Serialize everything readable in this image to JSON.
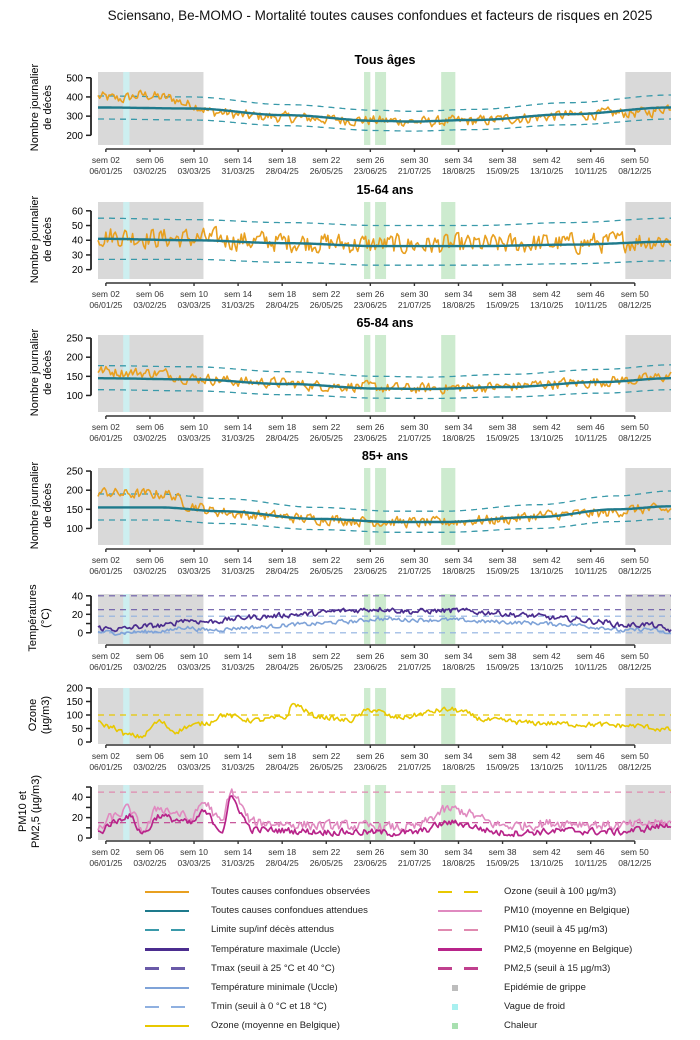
{
  "title": "Sciensano, Be-MOMO - Mortalité toutes causes confondues et facteurs de risques en 2025",
  "colors": {
    "observed": "#E8A020",
    "expected": "#1E7A8C",
    "limits": "#3A9AAA",
    "tmax": "#4B2D8F",
    "tmax_threshold": "#6A5AA8",
    "tmin": "#7FA3D8",
    "tmin_threshold": "#8FB0E0",
    "ozone": "#E8C800",
    "ozone_threshold": "#E8C800",
    "pm10": "#E08AC0",
    "pm10_threshold": "#E08AB0",
    "pm25": "#B8248A",
    "pm25_threshold": "#C0408E",
    "flu": "#D9D9D9",
    "cold": "#CDEFF0",
    "heat": "#CDEBCF"
  },
  "x_ticks": [
    {
      "week": "sem 02",
      "date": "06/01/25"
    },
    {
      "week": "sem 06",
      "date": "03/02/25"
    },
    {
      "week": "sem 10",
      "date": "03/03/25"
    },
    {
      "week": "sem 14",
      "date": "31/03/25"
    },
    {
      "week": "sem 18",
      "date": "28/04/25"
    },
    {
      "week": "sem 22",
      "date": "26/05/25"
    },
    {
      "week": "sem 26",
      "date": "23/06/25"
    },
    {
      "week": "sem 30",
      "date": "21/07/25"
    },
    {
      "week": "sem 34",
      "date": "18/08/25"
    },
    {
      "week": "sem 38",
      "date": "15/09/25"
    },
    {
      "week": "sem 42",
      "date": "13/10/25"
    },
    {
      "week": "sem 46",
      "date": "10/11/25"
    },
    {
      "week": "sem 50",
      "date": "08/12/25"
    }
  ],
  "periods": {
    "flu": [
      [
        1,
        68
      ],
      [
        336,
        365
      ]
    ],
    "cold": [
      [
        17,
        21
      ]
    ],
    "heat": [
      [
        170,
        174
      ],
      [
        177,
        184
      ],
      [
        219,
        228
      ]
    ]
  },
  "chart_data": [
    {
      "type": "line",
      "title": "Tous âges",
      "ylabel": [
        "Nombre journalier",
        "de décès"
      ],
      "yticks": [
        200,
        300,
        400,
        500
      ],
      "ylim": [
        160,
        530
      ],
      "x_unit": "day of year 2025",
      "series": [
        {
          "name": "Toutes causes confondues observées",
          "key": "observed",
          "x": [
            1,
            15,
            30,
            45,
            60,
            75,
            100,
            130,
            160,
            190,
            210,
            240,
            270,
            300,
            330,
            350,
            365
          ],
          "values": [
            400,
            390,
            410,
            395,
            360,
            320,
            300,
            290,
            280,
            275,
            270,
            275,
            290,
            305,
            315,
            320,
            350
          ],
          "noise": 28
        },
        {
          "name": "Toutes causes confondues attendues",
          "key": "expected",
          "x": [
            1,
            60,
            120,
            180,
            200,
            240,
            300,
            365
          ],
          "values": [
            345,
            340,
            305,
            275,
            272,
            280,
            310,
            345
          ]
        },
        {
          "name": "Limite sup décès attendus",
          "key": "upper",
          "x": [
            1,
            60,
            120,
            180,
            200,
            240,
            300,
            365
          ],
          "values": [
            405,
            400,
            360,
            330,
            325,
            335,
            370,
            410
          ]
        },
        {
          "name": "Limite inf décès attendus",
          "key": "lower",
          "x": [
            1,
            60,
            120,
            180,
            200,
            240,
            300,
            365
          ],
          "values": [
            285,
            280,
            250,
            225,
            222,
            230,
            255,
            285
          ]
        }
      ]
    },
    {
      "type": "line",
      "title": "15-64 ans",
      "ylabel": [
        "Nombre journalier",
        "de décès"
      ],
      "yticks": [
        20,
        30,
        40,
        50,
        60
      ],
      "ylim": [
        15,
        66
      ],
      "x_unit": "day of year 2025",
      "series": [
        {
          "name": "Toutes causes confondues observées",
          "key": "observed",
          "x": [
            1,
            60,
            120,
            180,
            240,
            300,
            365
          ],
          "values": [
            43,
            41,
            39,
            37,
            37,
            38,
            40
          ],
          "noise": 7
        },
        {
          "name": "Toutes causes confondues attendues",
          "key": "expected",
          "x": [
            1,
            60,
            120,
            180,
            240,
            300,
            365
          ],
          "values": [
            41,
            40,
            38,
            36,
            36,
            37,
            39
          ]
        },
        {
          "name": "Limite sup décès attendus",
          "key": "upper",
          "x": [
            1,
            60,
            120,
            180,
            240,
            300,
            365
          ],
          "values": [
            55,
            54,
            52,
            50,
            50,
            52,
            55
          ]
        },
        {
          "name": "Limite inf décès attendus",
          "key": "lower",
          "x": [
            1,
            60,
            120,
            180,
            240,
            300,
            365
          ],
          "values": [
            27,
            27,
            25,
            23,
            23,
            24,
            26
          ]
        }
      ]
    },
    {
      "type": "line",
      "title": "65-84 ans",
      "ylabel": [
        "Nombre journalier",
        "de décès"
      ],
      "yticks": [
        100,
        150,
        200,
        250
      ],
      "ylim": [
        62,
        258
      ],
      "x_unit": "day of year 2025",
      "series": [
        {
          "name": "Toutes causes confondues observées",
          "key": "observed",
          "x": [
            1,
            20,
            40,
            60,
            100,
            150,
            200,
            250,
            300,
            340,
            365
          ],
          "values": [
            165,
            160,
            158,
            145,
            135,
            125,
            118,
            122,
            132,
            140,
            150
          ],
          "noise": 14
        },
        {
          "name": "Toutes causes confondues attendues",
          "key": "expected",
          "x": [
            1,
            60,
            120,
            180,
            210,
            260,
            320,
            365
          ],
          "values": [
            145,
            142,
            130,
            118,
            117,
            122,
            135,
            145
          ]
        },
        {
          "name": "Limite sup décès attendus",
          "key": "upper",
          "x": [
            1,
            60,
            120,
            180,
            210,
            260,
            320,
            365
          ],
          "values": [
            178,
            175,
            162,
            150,
            148,
            155,
            168,
            180
          ]
        },
        {
          "name": "Limite inf décès attendus",
          "key": "lower",
          "x": [
            1,
            60,
            120,
            180,
            210,
            260,
            320,
            365
          ],
          "values": [
            115,
            112,
            102,
            93,
            92,
            96,
            106,
            115
          ]
        }
      ]
    },
    {
      "type": "line",
      "title": "85+ ans",
      "ylabel": [
        "Nombre journalier",
        "de décès"
      ],
      "yticks": [
        100,
        150,
        200,
        250
      ],
      "ylim": [
        62,
        258
      ],
      "x_unit": "day of year 2025",
      "series": [
        {
          "name": "Toutes causes confondues observées",
          "key": "observed",
          "x": [
            1,
            20,
            45,
            60,
            75,
            100,
            140,
            180,
            210,
            250,
            290,
            320,
            345,
            365
          ],
          "values": [
            195,
            190,
            190,
            160,
            145,
            135,
            125,
            118,
            115,
            122,
            135,
            140,
            150,
            148
          ],
          "noise": 14
        },
        {
          "name": "Toutes causes confondues attendues",
          "key": "expected",
          "x": [
            1,
            40,
            80,
            140,
            190,
            220,
            280,
            330,
            365
          ],
          "values": [
            155,
            155,
            145,
            125,
            117,
            117,
            130,
            150,
            158
          ]
        },
        {
          "name": "Limite sup décès attendus",
          "key": "upper",
          "x": [
            1,
            40,
            80,
            140,
            190,
            220,
            280,
            330,
            365
          ],
          "values": [
            190,
            190,
            178,
            155,
            145,
            145,
            162,
            185,
            198
          ]
        },
        {
          "name": "Limite inf décès attendus",
          "key": "lower",
          "x": [
            1,
            40,
            80,
            140,
            190,
            220,
            280,
            330,
            365
          ],
          "values": [
            122,
            122,
            113,
            97,
            90,
            90,
            100,
            118,
            125
          ]
        }
      ]
    },
    {
      "type": "line",
      "title": "",
      "ylabel": [
        "Températures",
        "(°C)"
      ],
      "yticks": [
        0,
        20,
        40
      ],
      "minor_yticks": [
        10,
        30
      ],
      "ylim": [
        -10,
        42
      ],
      "x_unit": "day of year 2025",
      "series": [
        {
          "name": "Température maximale (Uccle)",
          "key": "tmax",
          "x": [
            1,
            15,
            30,
            45,
            55,
            70,
            100,
            130,
            160,
            180,
            200,
            225,
            250,
            270,
            300,
            320,
            335,
            350,
            365
          ],
          "values": [
            5,
            4,
            7,
            8,
            14,
            12,
            17,
            20,
            24,
            26,
            23,
            24,
            22,
            19,
            15,
            12,
            8,
            9,
            3
          ],
          "noise": 3
        },
        {
          "name": "Température minimale (Uccle)",
          "key": "tmin",
          "x": [
            1,
            15,
            30,
            45,
            55,
            70,
            100,
            130,
            160,
            180,
            200,
            225,
            250,
            270,
            300,
            320,
            335,
            350,
            365
          ],
          "values": [
            1,
            0,
            1,
            2,
            6,
            3,
            6,
            9,
            12,
            15,
            14,
            14,
            12,
            11,
            9,
            6,
            2,
            4,
            -1
          ],
          "noise": 2.2
        },
        {
          "name": "Tmax seuil 25 °C",
          "key": "tmax_threshold",
          "constant": 25
        },
        {
          "name": "Tmax seuil 40 °C",
          "key": "tmax_threshold",
          "constant": 40
        },
        {
          "name": "Tmin seuil 0 °C",
          "key": "tmin_threshold",
          "constant": 0
        },
        {
          "name": "Tmin seuil 18 °C",
          "key": "tmin_threshold",
          "constant": 18
        }
      ]
    },
    {
      "type": "line",
      "title": "",
      "ylabel": [
        "Ozone",
        "(µg/m3)"
      ],
      "yticks": [
        0,
        50,
        100,
        150,
        200
      ],
      "ylim": [
        0,
        200
      ],
      "x_unit": "day of year 2025",
      "series": [
        {
          "name": "Ozone (moyenne en Belgique)",
          "key": "ozone",
          "x": [
            1,
            10,
            20,
            28,
            40,
            50,
            60,
            70,
            80,
            100,
            120,
            125,
            140,
            160,
            175,
            190,
            225,
            250,
            280,
            310,
            340,
            365
          ],
          "values": [
            70,
            55,
            25,
            20,
            75,
            40,
            60,
            70,
            100,
            80,
            90,
            140,
            95,
            80,
            120,
            90,
            120,
            80,
            70,
            65,
            60,
            45
          ],
          "noise": 10
        },
        {
          "name": "Ozone seuil 100 µg/m3",
          "key": "ozone_threshold",
          "constant": 100
        }
      ]
    },
    {
      "type": "line",
      "title": "",
      "ylabel": [
        "PM10 et",
        "PM2,5 (µg/m3)"
      ],
      "yticks": [
        0,
        20,
        40
      ],
      "minor_yticks": [
        10,
        30,
        50
      ],
      "ylim": [
        0,
        52
      ],
      "x_unit": "day of year 2025",
      "series": [
        {
          "name": "PM10 (moyenne en Belgique)",
          "key": "pm10",
          "x": [
            1,
            10,
            20,
            30,
            40,
            50,
            60,
            68,
            80,
            85,
            100,
            150,
            200,
            225,
            260,
            300,
            330,
            365
          ],
          "values": [
            8,
            20,
            28,
            8,
            30,
            25,
            18,
            35,
            15,
            45,
            15,
            12,
            10,
            28,
            12,
            15,
            12,
            15
          ],
          "noise": 5
        },
        {
          "name": "PM2,5 (moyenne en Belgique)",
          "key": "pm25",
          "x": [
            1,
            10,
            20,
            30,
            40,
            50,
            60,
            68,
            80,
            85,
            100,
            150,
            200,
            225,
            260,
            300,
            330,
            365
          ],
          "values": [
            5,
            15,
            22,
            5,
            22,
            18,
            14,
            25,
            8,
            38,
            8,
            6,
            5,
            15,
            5,
            7,
            6,
            12
          ],
          "noise": 3.5
        },
        {
          "name": "PM10 seuil 45 µg/m3",
          "key": "pm10_threshold",
          "constant": 45
        },
        {
          "name": "PM2,5 seuil 15 µg/m3",
          "key": "pm25_threshold",
          "constant": 15
        }
      ]
    }
  ],
  "legend": {
    "left": [
      {
        "label": "Toutes causes confondues observées",
        "key": "observed",
        "style": "solid"
      },
      {
        "label": "Toutes causes confondues attendues",
        "key": "expected",
        "style": "solid"
      },
      {
        "label": "Limite sup/inf décès attendus",
        "key": "limits",
        "style": "dashed"
      },
      {
        "label": "Température maximale (Uccle)",
        "key": "tmax",
        "style": "solid"
      },
      {
        "label": "Tmax (seuil à 25 °C et 40 °C)",
        "key": "tmax_threshold",
        "style": "dashed"
      },
      {
        "label": "Température minimale (Uccle)",
        "key": "tmin",
        "style": "solid"
      },
      {
        "label": "Tmin (seuil à 0 °C et 18 °C)",
        "key": "tmin_threshold",
        "style": "dashed"
      },
      {
        "label": "Ozone (moyenne en Belgique)",
        "key": "ozone",
        "style": "solid"
      }
    ],
    "right": [
      {
        "label": "Ozone (seuil à 100 µg/m3)",
        "key": "ozone_threshold",
        "style": "dashed"
      },
      {
        "label": "PM10 (moyenne en Belgique)",
        "key": "pm10",
        "style": "solid"
      },
      {
        "label": "PM10 (seuil à 45 µg/m3)",
        "key": "pm10_threshold",
        "style": "dashed"
      },
      {
        "label": "PM2,5 (moyenne en Belgique)",
        "key": "pm25",
        "style": "solid"
      },
      {
        "label": "PM2,5 (seuil à 15 µg/m3)",
        "key": "pm25_threshold",
        "style": "dashed"
      },
      {
        "label": "Epidémie de grippe",
        "key": "flu",
        "style": "square"
      },
      {
        "label": "Vague de froid",
        "key": "cold",
        "style": "square"
      },
      {
        "label": "Chaleur",
        "key": "heat",
        "style": "square"
      }
    ]
  }
}
